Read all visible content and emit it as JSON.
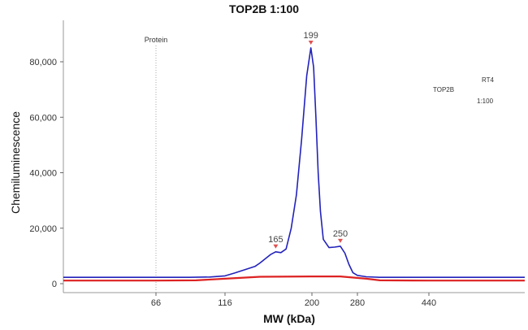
{
  "chart_data": {
    "type": "line",
    "title": "TOP2B 1:100",
    "xlabel": "MW (kDa)",
    "ylabel": "Chemiluminescence",
    "x_tick_labels": [
      "66",
      "116",
      "200",
      "280",
      "440"
    ],
    "x_tick_values": [
      66,
      116,
      200,
      280,
      440
    ],
    "y_tick_labels": [
      "0",
      "20,000",
      "40,000",
      "60,000",
      "80,000"
    ],
    "y_tick_values": [
      0,
      20000,
      40000,
      60000,
      80000
    ],
    "ylim": [
      0,
      94000
    ],
    "grid": false,
    "reference_line": {
      "label": "Protein",
      "x": 66
    },
    "peaks": [
      {
        "label": "165",
        "x": 165,
        "y": 11500
      },
      {
        "label": "199",
        "x": 199,
        "y": 85000
      },
      {
        "label": "250",
        "x": 250,
        "y": 13500
      }
    ],
    "annotations": {
      "lane": "RT4",
      "antibody": "TOP2B",
      "dilution": "1:100"
    },
    "series": [
      {
        "color": "#2222bb",
        "points": [
          [
            12,
            2300
          ],
          [
            40,
            2300
          ],
          [
            66,
            2300
          ],
          [
            90,
            2300
          ],
          [
            105,
            2400
          ],
          [
            116,
            2800
          ],
          [
            125,
            3800
          ],
          [
            135,
            5000
          ],
          [
            145,
            6200
          ],
          [
            150,
            7500
          ],
          [
            155,
            9000
          ],
          [
            160,
            10500
          ],
          [
            165,
            11500
          ],
          [
            170,
            11200
          ],
          [
            175,
            12500
          ],
          [
            180,
            20000
          ],
          [
            185,
            32000
          ],
          [
            190,
            52000
          ],
          [
            195,
            75000
          ],
          [
            199,
            85000
          ],
          [
            203,
            78000
          ],
          [
            207,
            60000
          ],
          [
            211,
            40000
          ],
          [
            215,
            26000
          ],
          [
            220,
            16000
          ],
          [
            230,
            13000
          ],
          [
            240,
            13200
          ],
          [
            250,
            13500
          ],
          [
            258,
            11000
          ],
          [
            265,
            7000
          ],
          [
            272,
            4000
          ],
          [
            280,
            3000
          ],
          [
            300,
            2500
          ],
          [
            330,
            2300
          ],
          [
            380,
            2300
          ],
          [
            440,
            2300
          ],
          [
            520,
            2300
          ],
          [
            600,
            2300
          ]
        ]
      },
      {
        "color": "#dd2222",
        "points": [
          [
            12,
            1100
          ],
          [
            66,
            1100
          ],
          [
            95,
            1200
          ],
          [
            116,
            1800
          ],
          [
            150,
            2500
          ],
          [
            200,
            2600
          ],
          [
            250,
            2600
          ],
          [
            300,
            1800
          ],
          [
            330,
            1200
          ],
          [
            440,
            1100
          ],
          [
            520,
            1100
          ],
          [
            600,
            1100
          ]
        ]
      }
    ]
  }
}
